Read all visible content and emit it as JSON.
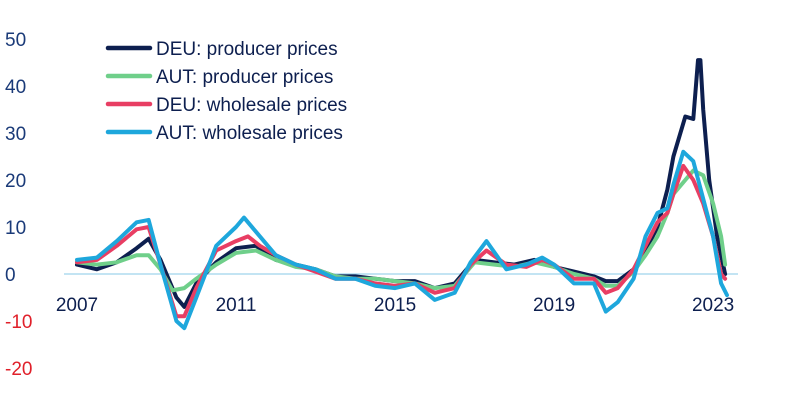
{
  "chart_data": {
    "type": "line",
    "title": "",
    "xlabel": "",
    "ylabel": "",
    "xlim": [
      2007.0,
      2023.55
    ],
    "ylim": [
      -20,
      50
    ],
    "x_ticks": [
      2007,
      2011,
      2015,
      2019,
      2023
    ],
    "y_ticks": [
      50,
      40,
      30,
      20,
      10,
      0,
      -10,
      -20
    ],
    "grid": false,
    "legend_position": "top-left",
    "colors": {
      "tick_positive": "#1a3a78",
      "tick_negative": "#e0202a",
      "tick_x": "#0d1f4f",
      "zero_line": "#9fd3ec"
    },
    "series": [
      {
        "name": "DEU: producer prices",
        "color": "#0d1f4f",
        "x": [
          2007.0,
          2007.5,
          2008.0,
          2008.5,
          2008.8,
          2009.1,
          2009.5,
          2009.7,
          2010.0,
          2010.5,
          2011.0,
          2011.5,
          2012.0,
          2012.5,
          2013.0,
          2013.5,
          2014.0,
          2014.5,
          2015.0,
          2015.5,
          2016.0,
          2016.5,
          2017.0,
          2017.5,
          2018.0,
          2018.5,
          2019.0,
          2019.5,
          2020.0,
          2020.3,
          2020.6,
          2021.0,
          2021.3,
          2021.6,
          2021.85,
          2022.0,
          2022.3,
          2022.5,
          2022.62,
          2022.68,
          2022.75,
          2022.9,
          2023.1,
          2023.3
        ],
        "y": [
          2.0,
          1.0,
          2.5,
          5.5,
          7.5,
          3.0,
          -5.0,
          -7.0,
          -2.0,
          2.5,
          5.5,
          6.0,
          3.0,
          2.0,
          1.0,
          -0.5,
          -0.5,
          -1.0,
          -1.5,
          -1.5,
          -3.0,
          -2.0,
          3.0,
          2.5,
          2.0,
          3.0,
          1.5,
          0.5,
          -0.5,
          -1.5,
          -1.5,
          1.0,
          5.0,
          10.0,
          18.0,
          25.0,
          33.5,
          33.0,
          45.5,
          45.5,
          35.0,
          20.0,
          8.0,
          0.0
        ]
      },
      {
        "name": "AUT: producer prices",
        "color": "#6fcf8a",
        "x": [
          2007.0,
          2007.5,
          2008.0,
          2008.5,
          2008.8,
          2009.1,
          2009.4,
          2009.7,
          2010.0,
          2010.5,
          2011.0,
          2011.5,
          2012.0,
          2012.5,
          2013.0,
          2013.5,
          2014.0,
          2014.5,
          2015.0,
          2015.5,
          2016.0,
          2016.5,
          2017.0,
          2017.5,
          2018.0,
          2018.5,
          2019.0,
          2019.5,
          2020.0,
          2020.3,
          2020.6,
          2021.0,
          2021.3,
          2021.6,
          2021.85,
          2022.0,
          2022.3,
          2022.5,
          2022.75,
          2023.0,
          2023.2,
          2023.3
        ],
        "y": [
          2.5,
          2.0,
          2.5,
          4.0,
          4.0,
          1.0,
          -3.5,
          -3.0,
          -1.0,
          2.0,
          4.5,
          5.0,
          3.0,
          1.5,
          1.0,
          -0.5,
          -1.0,
          -1.0,
          -1.5,
          -2.0,
          -3.0,
          -2.5,
          2.5,
          2.0,
          1.5,
          2.5,
          1.5,
          0.0,
          -1.0,
          -2.5,
          -2.5,
          0.5,
          4.0,
          8.0,
          13.0,
          17.0,
          20.0,
          22.0,
          21.0,
          15.0,
          8.0,
          2.0
        ]
      },
      {
        "name": "DEU: wholesale prices",
        "color": "#e83e63",
        "x": [
          2007.0,
          2007.5,
          2008.0,
          2008.5,
          2008.8,
          2009.1,
          2009.5,
          2009.7,
          2010.0,
          2010.5,
          2011.0,
          2011.3,
          2011.6,
          2012.0,
          2012.5,
          2013.0,
          2013.5,
          2014.0,
          2014.5,
          2015.0,
          2015.5,
          2016.0,
          2016.5,
          2016.9,
          2017.3,
          2017.8,
          2018.3,
          2018.7,
          2019.0,
          2019.5,
          2020.0,
          2020.3,
          2020.6,
          2021.0,
          2021.3,
          2021.6,
          2021.85,
          2022.0,
          2022.25,
          2022.5,
          2022.75,
          2023.0,
          2023.2,
          2023.3
        ],
        "y": [
          2.5,
          3.0,
          6.0,
          9.5,
          10.0,
          2.0,
          -9.0,
          -9.0,
          -3.0,
          5.0,
          7.0,
          8.0,
          6.0,
          4.0,
          2.0,
          0.5,
          -1.0,
          -1.0,
          -2.0,
          -2.5,
          -2.0,
          -4.0,
          -3.0,
          2.0,
          5.0,
          2.0,
          1.5,
          3.0,
          2.0,
          -1.0,
          -1.0,
          -4.0,
          -3.0,
          1.0,
          6.0,
          11.0,
          13.0,
          17.0,
          23.0,
          20.0,
          15.0,
          8.0,
          0.0,
          -1.0
        ]
      },
      {
        "name": "AUT: wholesale prices",
        "color": "#1ea7dc",
        "x": [
          2007.0,
          2007.5,
          2008.0,
          2008.5,
          2008.8,
          2009.1,
          2009.5,
          2009.7,
          2010.0,
          2010.5,
          2011.0,
          2011.2,
          2011.5,
          2011.8,
          2012.0,
          2012.5,
          2013.0,
          2013.5,
          2014.0,
          2014.5,
          2015.0,
          2015.5,
          2016.0,
          2016.5,
          2016.9,
          2017.3,
          2017.8,
          2018.3,
          2018.7,
          2019.0,
          2019.5,
          2020.0,
          2020.3,
          2020.6,
          2021.0,
          2021.3,
          2021.6,
          2021.85,
          2022.0,
          2022.25,
          2022.5,
          2022.75,
          2023.0,
          2023.2,
          2023.35
        ],
        "y": [
          3.0,
          3.5,
          7.0,
          11.0,
          11.5,
          2.0,
          -10.0,
          -11.5,
          -5.0,
          6.0,
          10.0,
          12.0,
          9.0,
          6.0,
          4.0,
          2.0,
          1.0,
          -1.0,
          -1.0,
          -2.5,
          -3.0,
          -2.0,
          -5.5,
          -4.0,
          2.5,
          7.0,
          1.0,
          2.0,
          3.5,
          2.0,
          -2.0,
          -2.0,
          -8.0,
          -6.0,
          -1.0,
          8.0,
          13.0,
          14.0,
          19.0,
          26.0,
          24.0,
          16.0,
          8.0,
          -2.0,
          -4.5
        ]
      }
    ]
  }
}
